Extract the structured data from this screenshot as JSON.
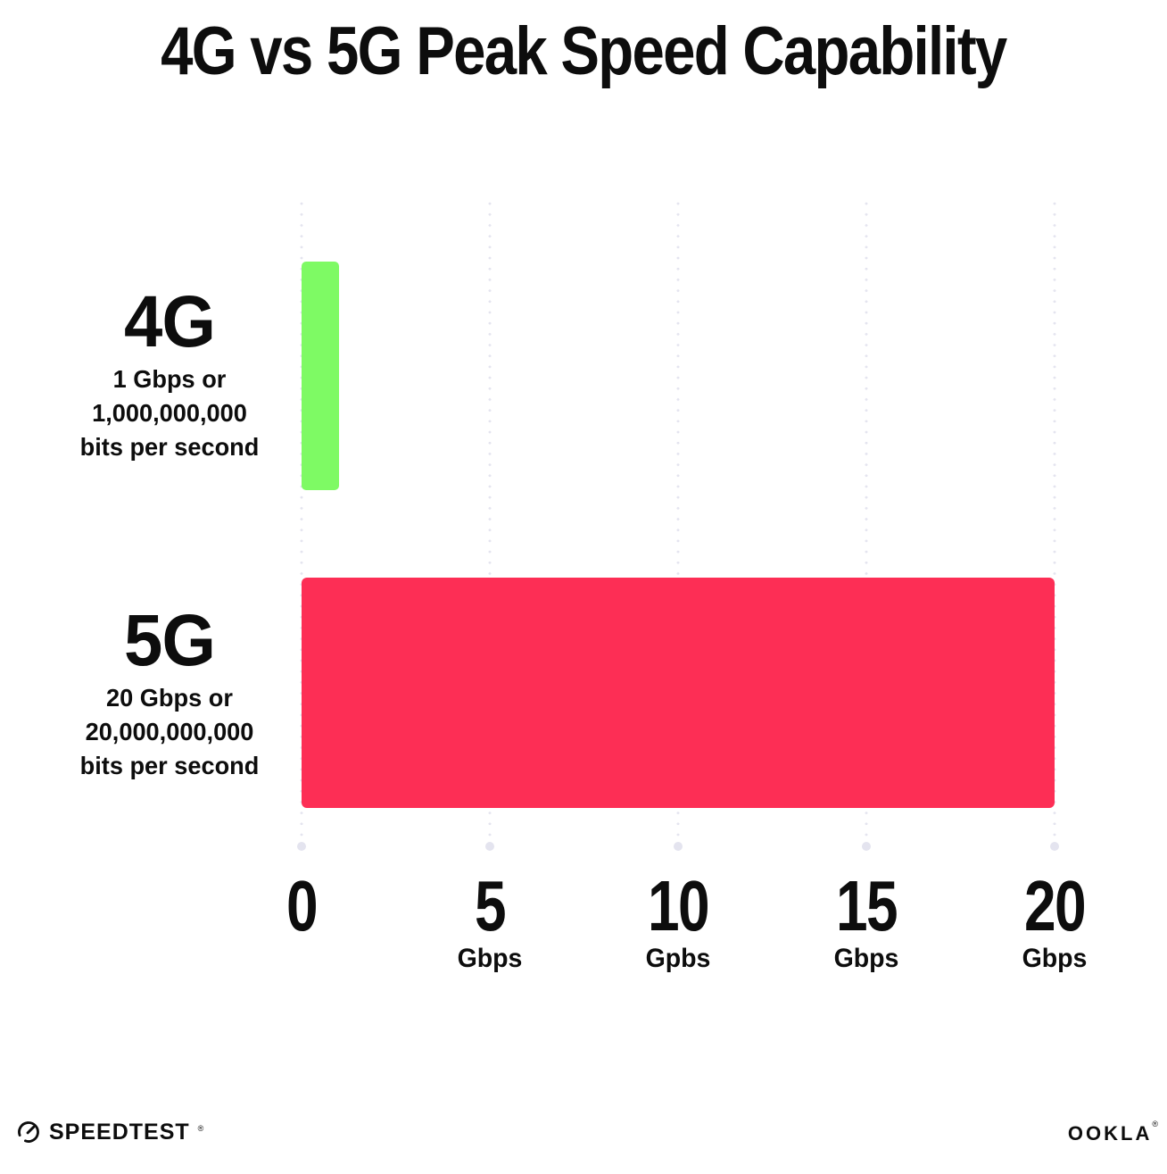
{
  "title": "4G vs 5G Peak Speed Capability",
  "chart_data": {
    "type": "bar",
    "orientation": "horizontal",
    "title": "4G vs 5G Peak Speed Capability",
    "categories": [
      "4G",
      "5G"
    ],
    "values": [
      1,
      20
    ],
    "value_unit": "Gbps",
    "bar_colors": [
      "#7efa64",
      "#fd2e55"
    ],
    "category_annotations": [
      [
        "1 Gbps or",
        "1,000,000,000",
        "bits per second"
      ],
      [
        "20 Gbps or",
        "20,000,000,000",
        "bits per second"
      ]
    ],
    "x_ticks": [
      {
        "value": 0,
        "label": "0",
        "unit": ""
      },
      {
        "value": 5,
        "label": "5",
        "unit": "Gbps"
      },
      {
        "value": 10,
        "label": "10",
        "unit": "Gpbs"
      },
      {
        "value": 15,
        "label": "15",
        "unit": "Gbps"
      },
      {
        "value": 20,
        "label": "20",
        "unit": "Gbps"
      }
    ],
    "xlim": [
      0,
      20
    ],
    "grid": "vertical dotted gridlines with terminal dots",
    "legend": "none"
  },
  "footer": {
    "left_logo": {
      "text": "SPEEDTEST",
      "mark": "®",
      "icon": "speedtest-gauge-icon"
    },
    "right_logo": {
      "text": "OOKLA",
      "mark": "®"
    }
  },
  "colors": {
    "background": "#ffffff",
    "text": "#0d0d0d",
    "gridline": "#e4e4ef",
    "bar_4g": "#7efa64",
    "bar_5g": "#fd2e55"
  }
}
